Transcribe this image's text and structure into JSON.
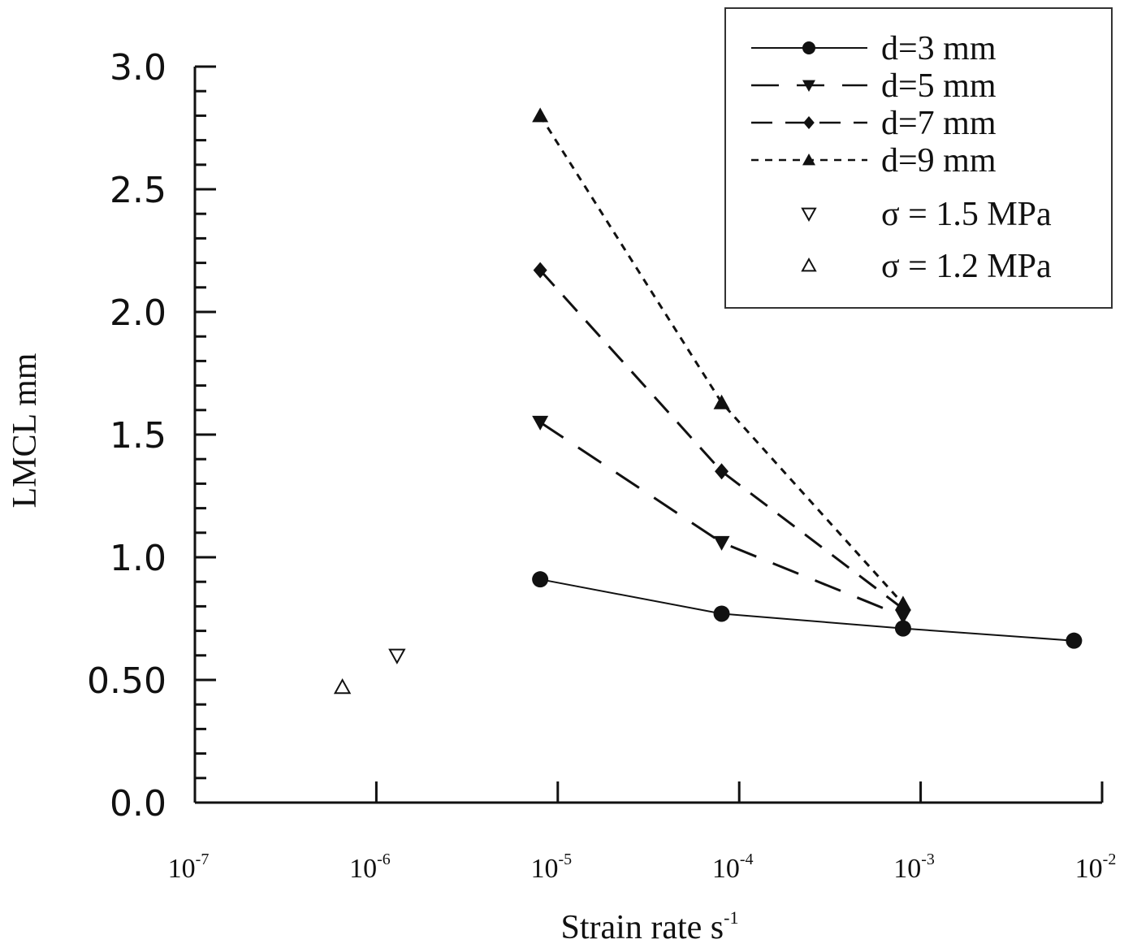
{
  "chart_data": {
    "type": "line",
    "title": "",
    "xlabel": "Strain rate s",
    "xlabel_exponent": "-1",
    "ylabel": "LMCL mm",
    "x_scale": "log",
    "xlim": [
      1e-07,
      0.01
    ],
    "ylim": [
      0,
      3.0
    ],
    "x_ticks": [
      {
        "base": "10",
        "exp": "-7"
      },
      {
        "base": "10",
        "exp": "-6"
      },
      {
        "base": "10",
        "exp": "-5"
      },
      {
        "base": "10",
        "exp": "-4"
      },
      {
        "base": "10",
        "exp": "-3"
      },
      {
        "base": "10",
        "exp": "-2"
      }
    ],
    "y_ticks": [
      "0.0",
      "0.50",
      "1.0",
      "1.5",
      "2.0",
      "2.5",
      "3.0"
    ],
    "grid": false,
    "legend_position": "top-right",
    "series": [
      {
        "name": "d=3 mm",
        "marker": "circle",
        "line": "solid",
        "x": [
          8e-06,
          8e-05,
          0.0008,
          0.007
        ],
        "y": [
          0.91,
          0.77,
          0.71,
          0.66
        ]
      },
      {
        "name": "d=5 mm",
        "marker": "triangle-down",
        "line": "long-dash",
        "x": [
          8e-06,
          8e-05,
          0.0008
        ],
        "y": [
          1.55,
          1.06,
          0.76
        ]
      },
      {
        "name": "d=7 mm",
        "marker": "diamond",
        "line": "dash",
        "x": [
          8e-06,
          8e-05,
          0.0008
        ],
        "y": [
          2.17,
          1.35,
          0.79
        ]
      },
      {
        "name": "d=9 mm",
        "marker": "triangle-up",
        "line": "short-dash",
        "x": [
          8e-06,
          8e-05,
          0.0008
        ],
        "y": [
          2.8,
          1.63,
          0.81
        ]
      },
      {
        "name": "σ = 1.5 MPa",
        "marker": "open-triangle-down",
        "line": "none",
        "x": [
          1.3e-06
        ],
        "y": [
          0.6
        ]
      },
      {
        "name": "σ = 1.2 MPa",
        "marker": "open-triangle-up",
        "line": "none",
        "x": [
          6.5e-07
        ],
        "y": [
          0.47
        ]
      }
    ]
  }
}
